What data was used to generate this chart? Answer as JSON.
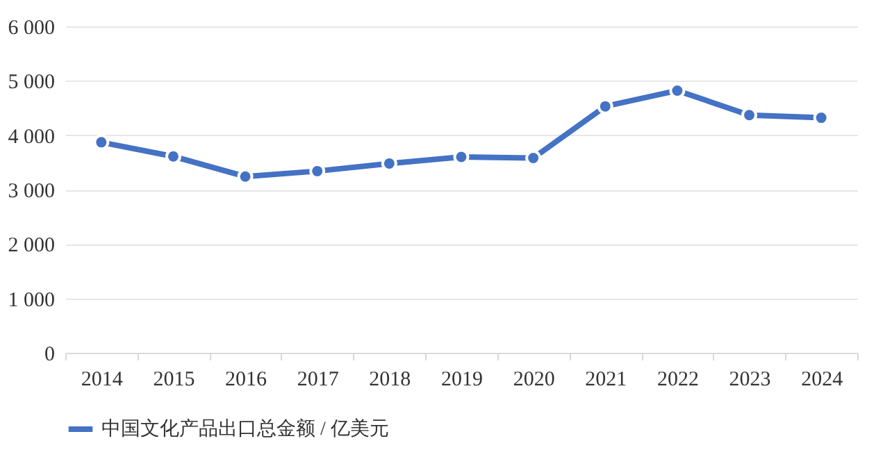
{
  "chart_data": {
    "type": "line",
    "categories": [
      "2014",
      "2015",
      "2016",
      "2017",
      "2018",
      "2019",
      "2020",
      "2021",
      "2022",
      "2023",
      "2024"
    ],
    "series": [
      {
        "name": "中国文化产品出口总金额 / 亿美元",
        "color": "#4472c4",
        "values": [
          3870,
          3610,
          3240,
          3340,
          3480,
          3600,
          3580,
          4530,
          4820,
          4370,
          4320
        ]
      }
    ],
    "ylim": [
      0,
      6000
    ],
    "yticks": [
      0,
      {
        "value": 1000,
        "label": "1 000"
      },
      {
        "value": 2000,
        "label": "2 000"
      },
      {
        "value": 3000,
        "label": "3 000"
      },
      {
        "value": 4000,
        "label": "4 000"
      },
      {
        "value": 5000,
        "label": "5 000"
      },
      {
        "value": 6000,
        "label": "6 000"
      }
    ],
    "grid": "y",
    "legend": "bottom",
    "marker": "circle",
    "line_style": "solid"
  }
}
